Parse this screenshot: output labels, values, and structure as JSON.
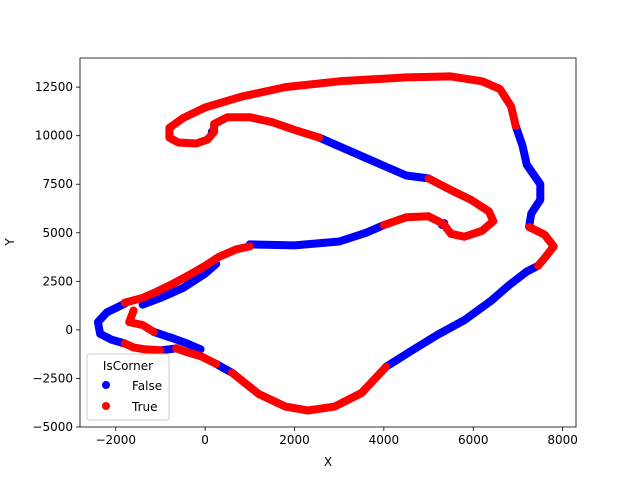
{
  "chart_data": {
    "type": "scatter",
    "title": "",
    "xlabel": "X",
    "ylabel": "Y",
    "xlim": [
      -2800,
      8300
    ],
    "ylim": [
      -5000,
      14000
    ],
    "xticks": [
      -2000,
      0,
      2000,
      4000,
      6000,
      8000
    ],
    "yticks": [
      -5000,
      -2500,
      0,
      2500,
      5000,
      7500,
      10000,
      12500
    ],
    "xtick_labels": [
      "−2000",
      "0",
      "2000",
      "4000",
      "6000",
      "8000"
    ],
    "ytick_labels": [
      "−5000",
      "−2500",
      "0",
      "2500",
      "5000",
      "7500",
      "10000",
      "12500"
    ],
    "grid": false,
    "legend": {
      "title": "IsCorner",
      "placement": "lower-left",
      "entries": [
        {
          "label": "False",
          "color": "#0000ff"
        },
        {
          "label": "True",
          "color": "#ff0000"
        }
      ]
    },
    "series": [
      {
        "name": "False",
        "color": "#0000ff",
        "segments": [
          [
            [
              -1400,
              1300
            ],
            [
              -1000,
              1650
            ],
            [
              -500,
              2150
            ],
            [
              0,
              2900
            ],
            [
              250,
              3400
            ]
          ],
          [
            [
              1000,
              4400
            ],
            [
              2000,
              4350
            ],
            [
              3000,
              4550
            ],
            [
              3600,
              5000
            ],
            [
              4000,
              5400
            ]
          ],
          [
            [
              2550,
              9900
            ],
            [
              3500,
              8950
            ],
            [
              4500,
              7950
            ],
            [
              5000,
              7800
            ]
          ],
          [
            [
              5300,
              5400
            ],
            [
              5350,
              5500
            ]
          ],
          [
            [
              -1800,
              1350
            ],
            [
              -2200,
              900
            ],
            [
              -2400,
              400
            ],
            [
              -2350,
              -200
            ],
            [
              -2100,
              -500
            ],
            [
              -1800,
              -700
            ]
          ],
          [
            [
              -1000,
              -1050
            ],
            [
              -800,
              -1000
            ],
            [
              -650,
              -950
            ]
          ],
          [
            [
              -1150,
              -100
            ],
            [
              -900,
              -300
            ],
            [
              -700,
              -450
            ],
            [
              -400,
              -700
            ],
            [
              -100,
              -1000
            ]
          ],
          [
            [
              250,
              -1750
            ],
            [
              400,
              -1950
            ],
            [
              600,
              -2200
            ]
          ],
          [
            [
              4050,
              -1900
            ],
            [
              4600,
              -1100
            ],
            [
              5200,
              -250
            ],
            [
              5800,
              500
            ],
            [
              6400,
              1500
            ],
            [
              6800,
              2300
            ],
            [
              7200,
              3000
            ],
            [
              7450,
              3300
            ]
          ],
          [
            [
              6950,
              10500
            ],
            [
              7100,
              9500
            ],
            [
              7200,
              8500
            ],
            [
              7500,
              7500
            ],
            [
              7500,
              6700
            ],
            [
              7300,
              6000
            ],
            [
              7250,
              5300
            ]
          ],
          [
            [
              150,
              10200
            ],
            [
              200,
              10300
            ]
          ]
        ]
      },
      {
        "name": "True",
        "color": "#ff0000",
        "segments": [
          [
            [
              -1800,
              1400
            ],
            [
              -1400,
              1650
            ],
            [
              -1100,
              1950
            ],
            [
              -700,
              2400
            ],
            [
              -300,
              2900
            ],
            [
              0,
              3300
            ],
            [
              300,
              3750
            ],
            [
              700,
              4150
            ],
            [
              1000,
              4300
            ]
          ],
          [
            [
              4000,
              5400
            ],
            [
              4500,
              5800
            ],
            [
              5000,
              5850
            ],
            [
              5300,
              5500
            ]
          ],
          [
            [
              5350,
              5400
            ],
            [
              5500,
              4950
            ],
            [
              5800,
              4800
            ],
            [
              6200,
              5100
            ],
            [
              6450,
              5600
            ],
            [
              6350,
              6100
            ],
            [
              5950,
              6700
            ],
            [
              5500,
              7200
            ],
            [
              5000,
              7800
            ]
          ],
          [
            [
              2550,
              9900
            ],
            [
              2000,
              10300
            ],
            [
              1500,
              10700
            ],
            [
              1000,
              10950
            ],
            [
              500,
              10950
            ],
            [
              200,
              10600
            ],
            [
              200,
              10200
            ],
            [
              50,
              9800
            ],
            [
              -200,
              9600
            ],
            [
              -600,
              9650
            ],
            [
              -800,
              9900
            ],
            [
              -800,
              10400
            ],
            [
              -500,
              10900
            ],
            [
              0,
              11450
            ],
            [
              800,
              12000
            ],
            [
              1800,
              12500
            ],
            [
              3000,
              12800
            ],
            [
              4500,
              13000
            ],
            [
              5500,
              13050
            ],
            [
              6200,
              12800
            ],
            [
              6600,
              12400
            ],
            [
              6850,
              11500
            ],
            [
              6950,
              10500
            ]
          ],
          [
            [
              7250,
              5300
            ],
            [
              7600,
              4900
            ],
            [
              7800,
              4300
            ],
            [
              7600,
              3700
            ],
            [
              7450,
              3300
            ]
          ],
          [
            [
              -1800,
              -700
            ],
            [
              -1600,
              -900
            ],
            [
              -1350,
              -1000
            ],
            [
              -1000,
              -1050
            ]
          ],
          [
            [
              -650,
              -950
            ],
            [
              -400,
              -1150
            ],
            [
              -100,
              -1350
            ],
            [
              250,
              -1750
            ]
          ],
          [
            [
              600,
              -2200
            ],
            [
              1200,
              -3300
            ],
            [
              1800,
              -3950
            ],
            [
              2300,
              -4150
            ],
            [
              2900,
              -3950
            ],
            [
              3500,
              -3250
            ],
            [
              4050,
              -1900
            ]
          ],
          [
            [
              -1600,
              1000
            ],
            [
              -1700,
              400
            ],
            [
              -1400,
              250
            ],
            [
              -1150,
              -100
            ]
          ]
        ]
      }
    ]
  }
}
